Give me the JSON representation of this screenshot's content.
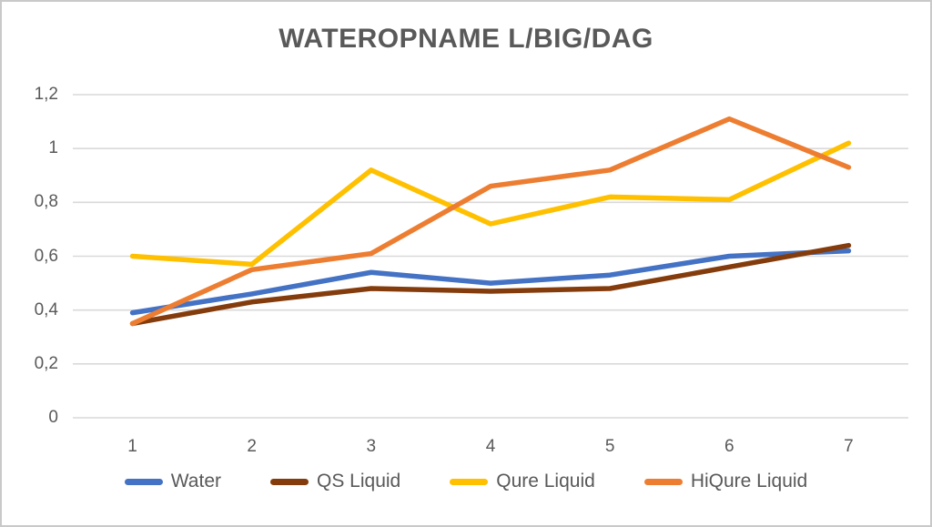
{
  "window": {
    "title": "WATEROPNAME L/BIG/DAG"
  },
  "chart_data": {
    "type": "line",
    "title": "WATEROPNAME L/BIG/DAG",
    "x": [
      1,
      2,
      3,
      4,
      5,
      6,
      7
    ],
    "xtick_labels": [
      "1",
      "2",
      "3",
      "4",
      "5",
      "6",
      "7"
    ],
    "ytick_values": [
      0,
      0.2,
      0.4,
      0.6,
      0.8,
      1.0,
      1.2
    ],
    "ytick_labels": [
      "0",
      "0,2",
      "0,4",
      "0,6",
      "0,8",
      "1",
      "1,2"
    ],
    "ylim": [
      0,
      1.2
    ],
    "grid": true,
    "legend_position": "bottom",
    "series": [
      {
        "name": "Water",
        "color": "#4472C4",
        "values": [
          0.39,
          0.46,
          0.54,
          0.5,
          0.53,
          0.6,
          0.62
        ]
      },
      {
        "name": "QS Liquid",
        "color": "#843C0C",
        "values": [
          0.35,
          0.43,
          0.48,
          0.47,
          0.48,
          0.56,
          0.64
        ]
      },
      {
        "name": "Qure Liquid",
        "color": "#FFC000",
        "values": [
          0.6,
          0.57,
          0.92,
          0.72,
          0.82,
          0.81,
          1.02
        ]
      },
      {
        "name": "HiQure Liquid",
        "color": "#ED7D31",
        "values": [
          0.35,
          0.55,
          0.61,
          0.86,
          0.92,
          1.11,
          0.93
        ]
      }
    ]
  },
  "colors": {
    "text": "#595959",
    "gridline": "#D9D9D9",
    "frame_border": "#C9C9C9",
    "background": "#FFFFFF"
  }
}
